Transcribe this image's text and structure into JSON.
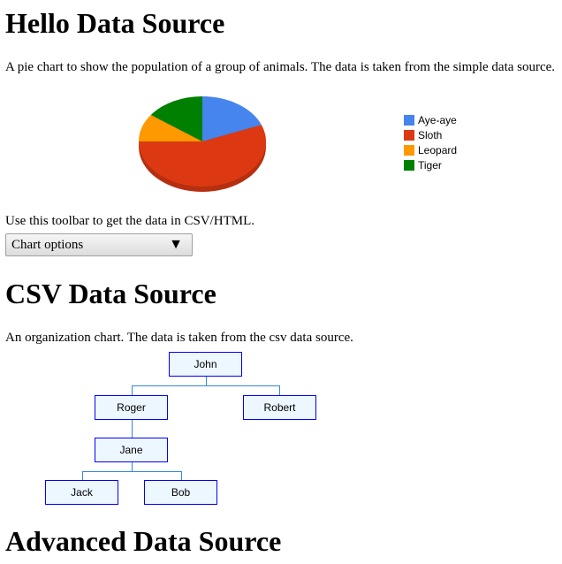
{
  "sections": {
    "hello": {
      "title": "Hello Data Source",
      "description": "A pie chart to show the population of a group of animals. The data is taken from the simple data source.",
      "toolbar_text": "Use this toolbar to get the data in CSV/HTML.",
      "dropdown_label": "Chart options",
      "dropdown_icon": "triangle-down-icon"
    },
    "csv": {
      "title": "CSV Data Source",
      "description": "An organization chart. The data is taken from the csv data source."
    },
    "advanced": {
      "title": "Advanced Data Source"
    }
  },
  "chart_data": {
    "type": "pie",
    "style": "3d",
    "legend": "right",
    "categories": [
      "Aye-aye",
      "Sloth",
      "Leopard",
      "Tiger"
    ],
    "values": [
      19,
      56,
      10,
      15
    ],
    "colors": [
      "#4684ee",
      "#dc3912",
      "#ff9900",
      "#008000"
    ]
  },
  "org_chart": {
    "nodes": [
      {
        "name": "John",
        "parent": ""
      },
      {
        "name": "Roger",
        "parent": "John"
      },
      {
        "name": "Robert",
        "parent": "John"
      },
      {
        "name": "Jane",
        "parent": "Roger"
      },
      {
        "name": "Jack",
        "parent": "Jane"
      },
      {
        "name": "Bob",
        "parent": "Jane"
      }
    ],
    "colors": {
      "border": "#0000ff",
      "fill": "#edf7ff",
      "line": "#3388dd"
    }
  }
}
